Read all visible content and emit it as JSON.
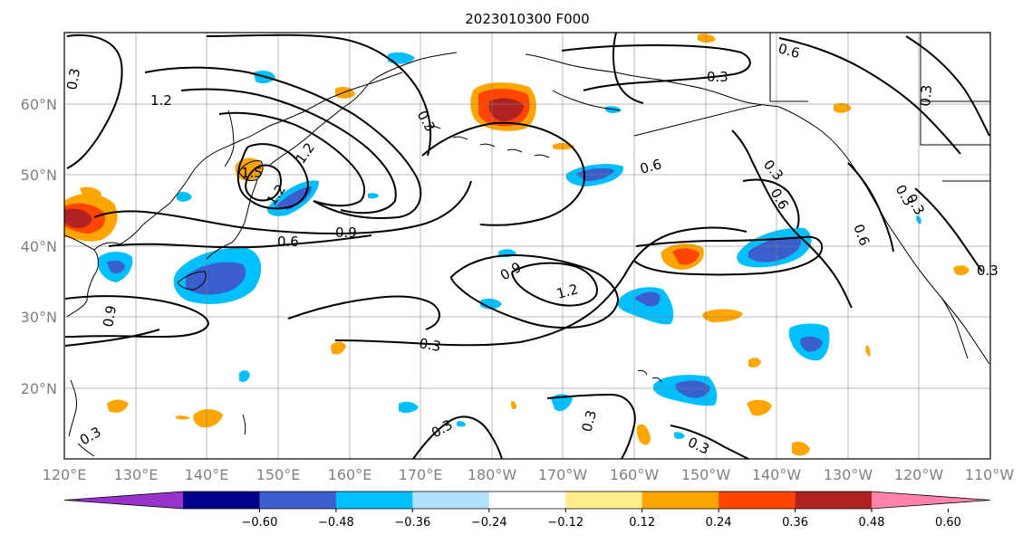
{
  "title": "2023010300 F000",
  "lat_labels": [
    "20°N",
    "30°N",
    "40°N",
    "50°N",
    "60°N"
  ],
  "lon_labels": [
    "120°E",
    "130°E",
    "140°E",
    "150°E",
    "160°E",
    "170°E",
    "180°W",
    "170°W",
    "160°W",
    "150°W",
    "140°W",
    "130°W",
    "120°W",
    "110°W"
  ],
  "colorbar": {
    "tick_labels": [
      "−0.60",
      "−0.48",
      "−0.36",
      "−0.24",
      "−0.12",
      "0.12",
      "0.24",
      "0.36",
      "0.48",
      "0.60"
    ],
    "colors": [
      "#9932CC",
      "#00008B",
      "#3A5FCD",
      "#00BFFF",
      "#B0E2FF",
      "#FFFFFF",
      "#FFEC8B",
      "#FFA500",
      "#FF4500",
      "#B22222",
      "#FF82AB"
    ]
  },
  "contour_labels": [
    {
      "text": "0.3",
      "at": "north of Japan sea"
    },
    {
      "text": "1.2",
      "at": "Kamchatka west"
    },
    {
      "text": "0.3",
      "at": "Bering Sea"
    },
    {
      "text": "0.3",
      "at": "Alaska"
    },
    {
      "text": "0.6",
      "at": "Yukon"
    },
    {
      "text": "0.6",
      "at": "Gulf of Alaska"
    },
    {
      "text": "0.3",
      "at": "Gulf of Alaska"
    },
    {
      "text": "0.6",
      "at": "Gulf of Alaska"
    },
    {
      "text": "0.6",
      "at": "Pacific Northwest"
    },
    {
      "text": "0.3",
      "at": "British Columbia"
    },
    {
      "text": "1.2",
      "at": "Kuril"
    },
    {
      "text": "1.5",
      "at": "Hokkaido"
    },
    {
      "text": "1.2",
      "at": "Hokkaido"
    },
    {
      "text": "0.9",
      "at": "central Pacific 45N"
    },
    {
      "text": "0.6",
      "at": "central Pacific 40N"
    },
    {
      "text": "0.9",
      "at": "date line 37N"
    },
    {
      "text": "1.2",
      "at": "170W 33N"
    },
    {
      "text": "0.9",
      "at": "west Pacific 30N"
    },
    {
      "text": "0.3",
      "at": "central Pacific 26N"
    },
    {
      "text": "0.3",
      "at": "Hawaii"
    },
    {
      "text": "0.3",
      "at": "180 15N"
    },
    {
      "text": "0.3",
      "at": "150W 13N"
    },
    {
      "text": "0.3",
      "at": "120E 13N"
    },
    {
      "text": "0.3",
      "at": "Northwest coast"
    },
    {
      "text": "0.3",
      "at": "Baja"
    },
    {
      "text": "0.3",
      "at": "Canada coast"
    }
  ]
}
